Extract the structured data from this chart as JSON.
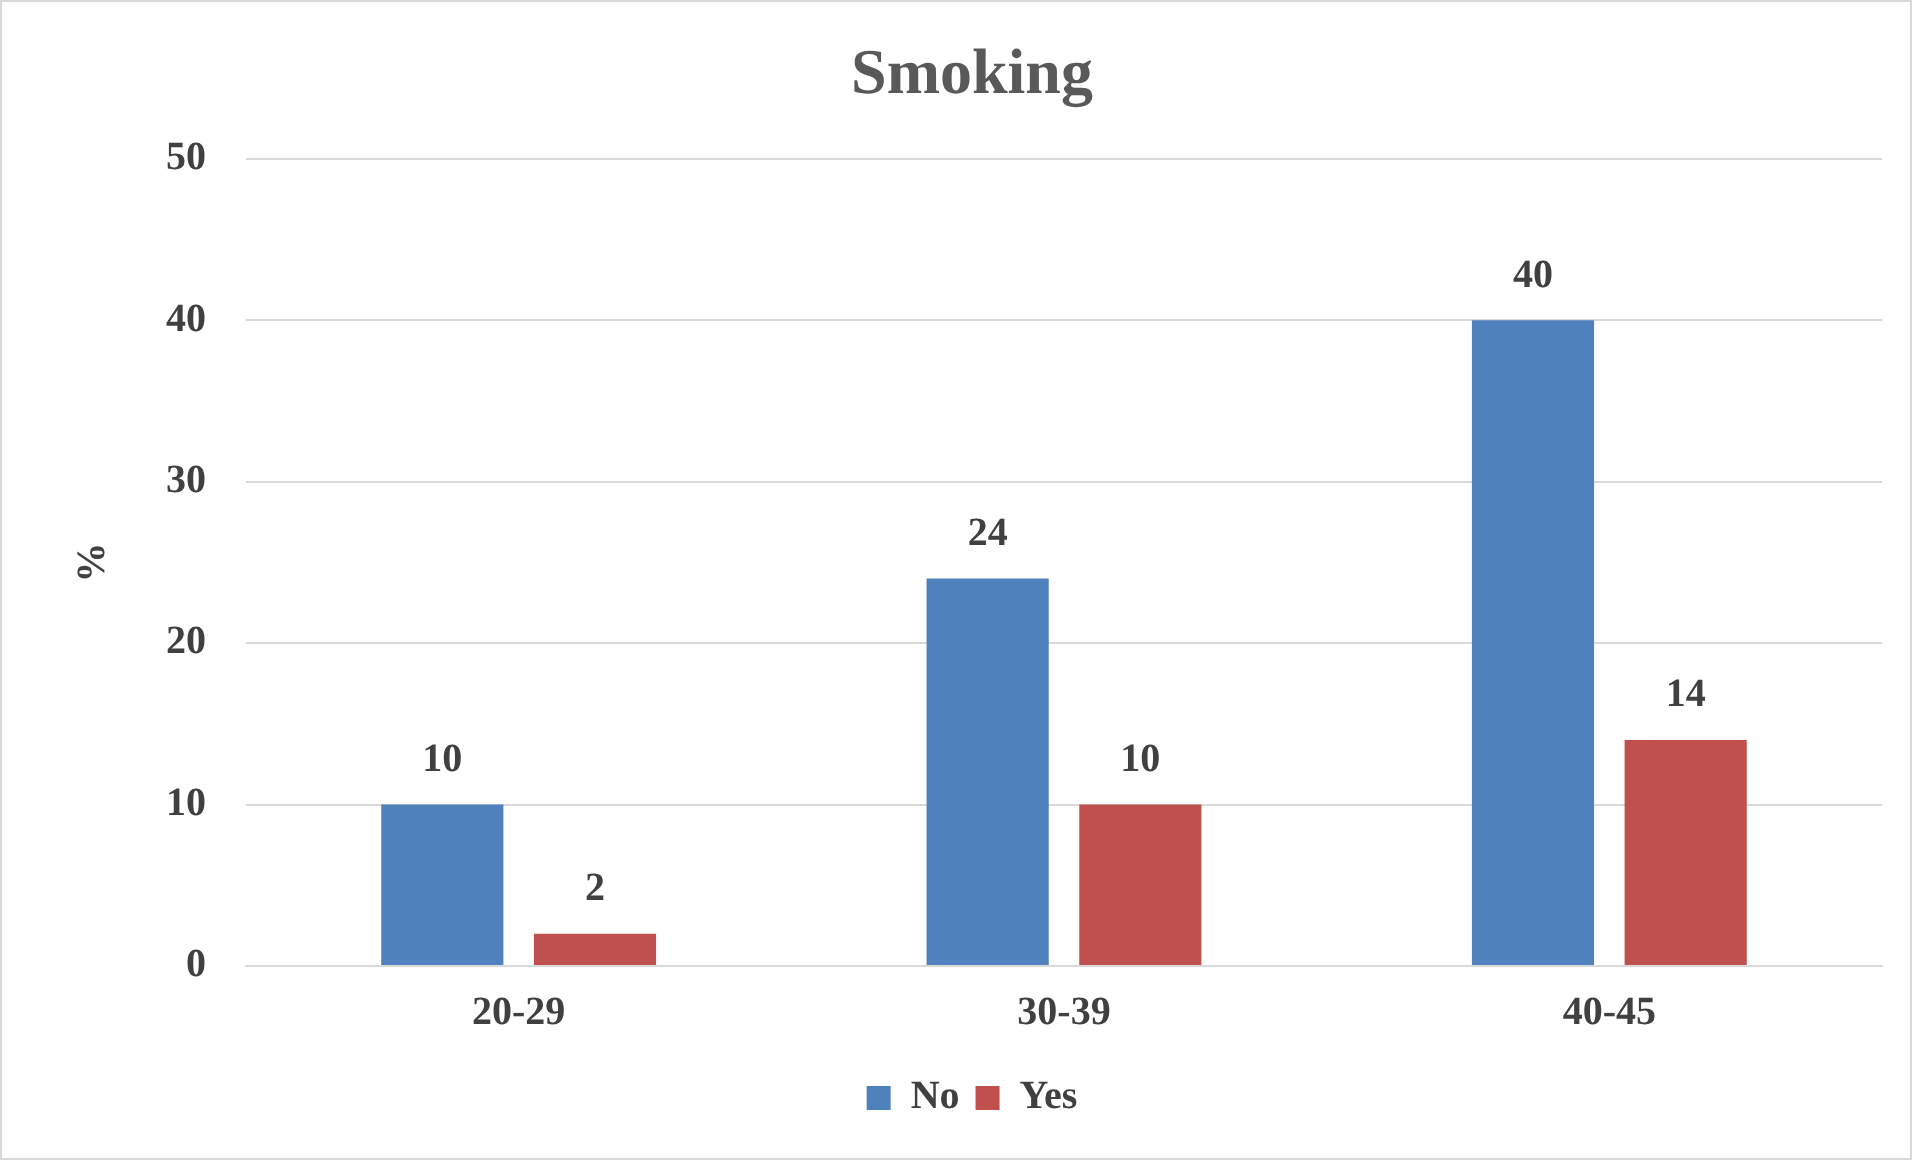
{
  "chart_data": {
    "type": "bar",
    "title": "Smoking",
    "ylabel": "%",
    "categories": [
      "20-29",
      "30-39",
      "40-45"
    ],
    "series": [
      {
        "name": "No",
        "color": "#4f81bd",
        "values": [
          10,
          24,
          40
        ]
      },
      {
        "name": "Yes",
        "color": "#c0504d",
        "values": [
          2,
          10,
          14
        ]
      }
    ],
    "ylim": [
      0,
      50
    ],
    "yticks": [
      0,
      10,
      20,
      30,
      40,
      50
    ],
    "grid": "y",
    "legend": "bottom",
    "data_labels": true
  }
}
